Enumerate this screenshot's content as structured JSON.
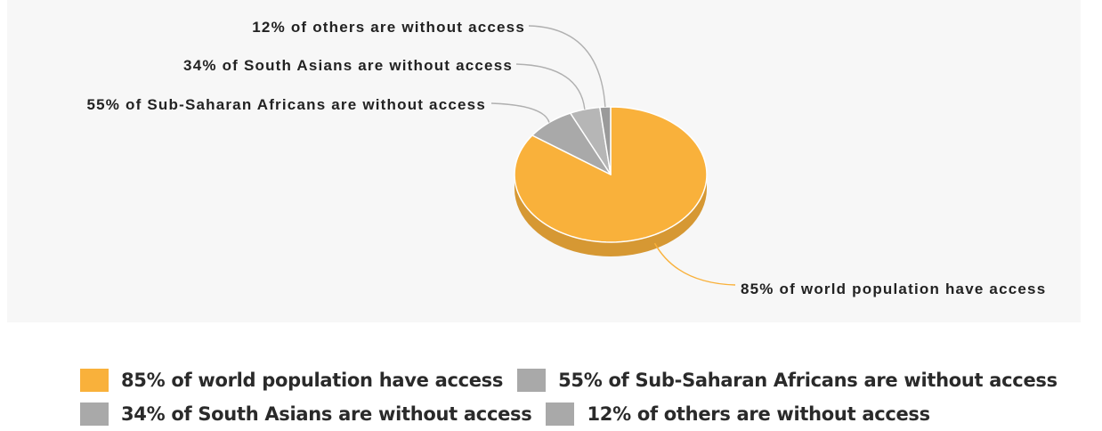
{
  "chart_data": {
    "type": "pie",
    "title": "",
    "slices": [
      {
        "label": "85% of world population have access",
        "value": 85,
        "color": "#f9b13b"
      },
      {
        "label": "55% of Sub-Saharan Africans are without access",
        "value": 8.3,
        "color": "#a9a9a9"
      },
      {
        "label": "34% of South Asians are without access",
        "value": 5.1,
        "color": "#b6b6b6"
      },
      {
        "label": "12% of others are without access",
        "value": 1.8,
        "color": "#9a9a9a"
      }
    ],
    "legend_position": "bottom"
  },
  "legend": {
    "rows": [
      [
        {
          "label": "85% of world population have access",
          "color": "#f9b13b"
        },
        {
          "label": "55% of Sub-Saharan Africans are without access",
          "color": "#a9a9a9"
        }
      ],
      [
        {
          "label": "34% of South Asians are without access",
          "color": "#a9a9a9"
        },
        {
          "label": "12% of others are without access",
          "color": "#a9a9a9"
        }
      ]
    ]
  }
}
